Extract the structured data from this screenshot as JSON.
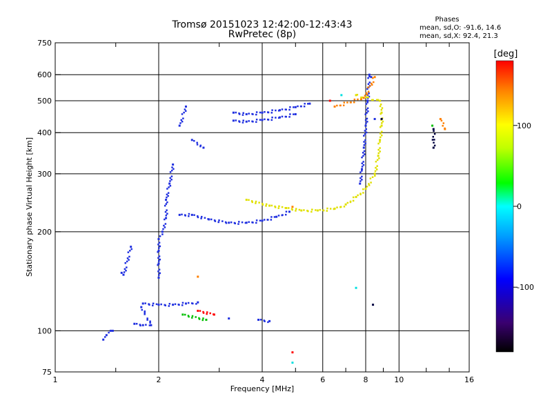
{
  "chart_data": {
    "type": "scatter",
    "title": "Tromsø 20151023 12:42:00-12:43:43",
    "subtitle": "RwPretec (8p)",
    "stats_title": "Phases",
    "stats": [
      "mean, sd,O: -91.6, 14.6",
      "mean, sd,X:  92.4, 21.3"
    ],
    "xlabel": "Frequency [MHz]",
    "ylabel": "Stationary phase Virtual Height [km]",
    "x_scale": "log2",
    "y_scale": "log",
    "xlim": [
      1,
      16
    ],
    "ylim": [
      75,
      750
    ],
    "x_ticks": [
      1,
      2,
      4,
      6,
      8,
      10,
      16
    ],
    "x_tick_labels": [
      "1",
      "2",
      "4",
      "6",
      "8",
      "10",
      "16"
    ],
    "y_ticks": [
      75,
      100,
      200,
      300,
      400,
      500,
      600,
      750
    ],
    "y_tick_labels": [
      "75",
      "100",
      "200",
      "300",
      "400",
      "500",
      "600",
      "750"
    ],
    "grid": true,
    "colorbar": {
      "label": "[deg]",
      "range": [
        -180,
        180
      ],
      "ticks": [
        100,
        0,
        -100
      ],
      "tick_labels": [
        "100",
        "0",
        "-100"
      ]
    },
    "series": [
      {
        "color": "#2030e0",
        "phase": -95,
        "points": [
          [
            1.38,
            94
          ],
          [
            1.41,
            97
          ],
          [
            1.45,
            100
          ],
          [
            1.47,
            100
          ],
          [
            1.56,
            150
          ],
          [
            1.58,
            148
          ],
          [
            1.66,
            180
          ],
          [
            1.7,
            105
          ],
          [
            1.8,
            104
          ],
          [
            1.9,
            104
          ],
          [
            1.78,
            118
          ],
          [
            1.8,
            121
          ],
          [
            2.0,
            120
          ],
          [
            2.2,
            120
          ],
          [
            2.4,
            121
          ],
          [
            2.6,
            122
          ],
          [
            2.0,
            145
          ],
          [
            2.0,
            160
          ],
          [
            2.0,
            175
          ],
          [
            2.0,
            190
          ],
          [
            2.05,
            200
          ],
          [
            2.1,
            220
          ],
          [
            2.1,
            250
          ],
          [
            2.15,
            280
          ],
          [
            2.2,
            320
          ],
          [
            2.3,
            420
          ],
          [
            2.4,
            480
          ],
          [
            2.5,
            380
          ],
          [
            2.7,
            360
          ],
          [
            2.3,
            225
          ],
          [
            2.5,
            225
          ],
          [
            2.8,
            218
          ],
          [
            3.2,
            213
          ],
          [
            3.6,
            213
          ],
          [
            4.0,
            216
          ],
          [
            4.4,
            222
          ],
          [
            4.8,
            230
          ],
          [
            3.3,
            460
          ],
          [
            3.6,
            455
          ],
          [
            4.0,
            460
          ],
          [
            4.5,
            468
          ],
          [
            5.0,
            478
          ],
          [
            5.5,
            490
          ],
          [
            3.3,
            435
          ],
          [
            3.6,
            432
          ],
          [
            4.0,
            437
          ],
          [
            4.5,
            445
          ],
          [
            5.0,
            455
          ],
          [
            7.7,
            280
          ],
          [
            7.8,
            310
          ],
          [
            7.9,
            360
          ],
          [
            8.0,
            420
          ],
          [
            8.1,
            500
          ],
          [
            8.2,
            600
          ],
          [
            8.3,
            590
          ],
          [
            8.5,
            440
          ],
          [
            3.9,
            108
          ],
          [
            4.2,
            107
          ],
          [
            3.2,
            109
          ]
        ]
      },
      {
        "color": "#e0e000",
        "phase": 95,
        "points": [
          [
            3.6,
            250
          ],
          [
            4.2,
            240
          ],
          [
            4.7,
            236
          ],
          [
            5.2,
            232
          ],
          [
            5.8,
            232
          ],
          [
            6.5,
            235
          ],
          [
            7.0,
            242
          ],
          [
            7.5,
            255
          ],
          [
            8.0,
            270
          ],
          [
            8.5,
            300
          ],
          [
            8.7,
            340
          ],
          [
            8.8,
            380
          ],
          [
            8.9,
            420
          ],
          [
            8.9,
            460
          ],
          [
            8.8,
            500
          ],
          [
            7.5,
            520
          ]
        ]
      },
      {
        "color": "#ff8000",
        "phase": 150,
        "points": [
          [
            2.6,
            146
          ],
          [
            4.9,
            238
          ],
          [
            6.5,
            480
          ],
          [
            7.9,
            510
          ],
          [
            8.5,
            590
          ],
          [
            13.2,
            440
          ],
          [
            13.6,
            410
          ]
        ]
      },
      {
        "color": "#ff0000",
        "phase": 170,
        "points": [
          [
            2.6,
            115
          ],
          [
            2.9,
            112
          ],
          [
            4.9,
            86
          ],
          [
            6.3,
            500
          ]
        ]
      },
      {
        "color": "#00e0e0",
        "phase": 20,
        "points": [
          [
            4.9,
            80
          ],
          [
            6.8,
            520
          ],
          [
            7.5,
            135
          ]
        ]
      },
      {
        "color": "#00c000",
        "phase": 40,
        "points": [
          [
            2.35,
            112
          ],
          [
            2.75,
            108
          ],
          [
            12.5,
            420
          ]
        ]
      },
      {
        "color": "#000040",
        "phase": -170,
        "points": [
          [
            8.9,
            440
          ],
          [
            12.6,
            410
          ],
          [
            12.6,
            360
          ],
          [
            8.4,
            120
          ]
        ]
      }
    ]
  }
}
